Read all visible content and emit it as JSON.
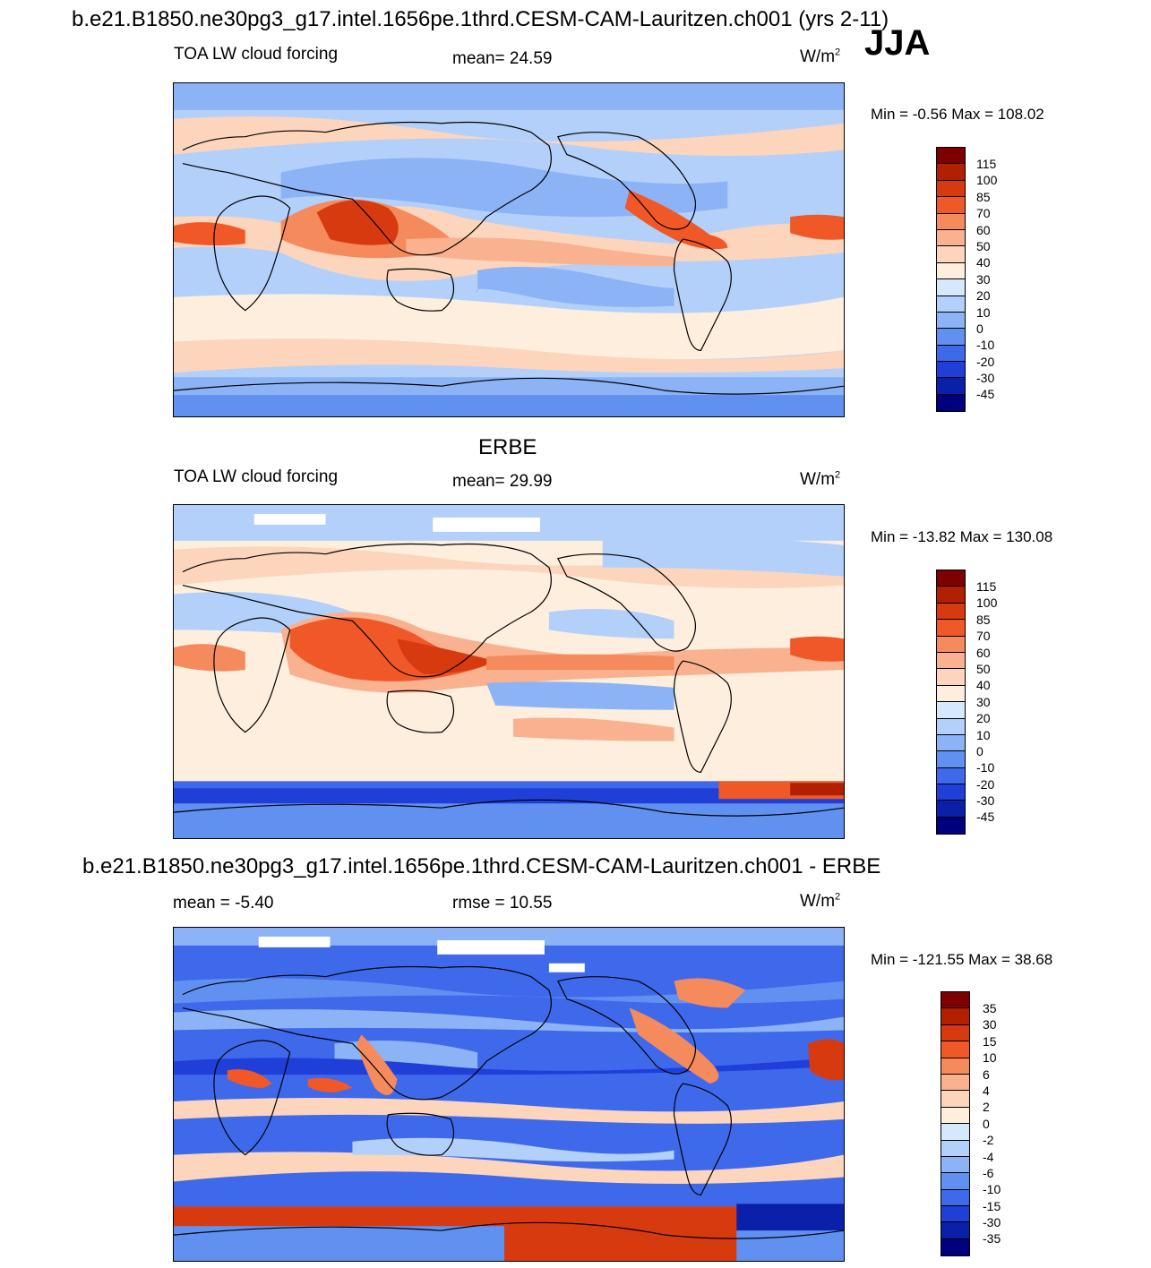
{
  "header": {
    "title": "b.e21.B1850.ne30pg3_g17.intel.1656pe.1thrd.CESM-CAM-Lauritzen.ch001 (yrs 2-11)",
    "season": "JJA"
  },
  "panel1": {
    "variable": "TOA LW cloud forcing",
    "mean": "mean=  24.59",
    "units": "W/m",
    "units_exp": "2",
    "minmax": "Min =  -0.56 Max = 108.02",
    "colorbar_labels": [
      "115",
      "100",
      "85",
      "70",
      "60",
      "50",
      "40",
      "30",
      "20",
      "10",
      "0",
      "-10",
      "-20",
      "-30",
      "-45"
    ]
  },
  "panel2": {
    "heading": "ERBE",
    "variable": "TOA LW cloud forcing",
    "mean": "mean=  29.99",
    "units": "W/m",
    "units_exp": "2",
    "minmax": "Min = -13.82 Max = 130.08",
    "colorbar_labels": [
      "115",
      "100",
      "85",
      "70",
      "60",
      "50",
      "40",
      "30",
      "20",
      "10",
      "0",
      "-10",
      "-20",
      "-30",
      "-45"
    ]
  },
  "panel3": {
    "heading": "b.e21.B1850.ne30pg3_g17.intel.1656pe.1thrd.CESM-CAM-Lauritzen.ch001 - ERBE",
    "mean": "mean =  -5.40",
    "rmse": "rmse =  10.55",
    "units": "W/m",
    "units_exp": "2",
    "minmax": "Min = -121.55 Max =  38.68",
    "colorbar_labels": [
      "35",
      "30",
      "15",
      "10",
      "6",
      "4",
      "2",
      "0",
      "-2",
      "-4",
      "-6",
      "-10",
      "-15",
      "-30",
      "-35"
    ]
  },
  "colors": {
    "palette": [
      "#7f0000",
      "#b22000",
      "#d83a10",
      "#f05828",
      "#f58a5c",
      "#f9b190",
      "#fcd5bc",
      "#fdeedd",
      "#d6e8fb",
      "#b3d0fa",
      "#8cb3f5",
      "#6090f0",
      "#3f69eb",
      "#1f3fd8",
      "#0a20a8",
      "#00007f"
    ]
  }
}
